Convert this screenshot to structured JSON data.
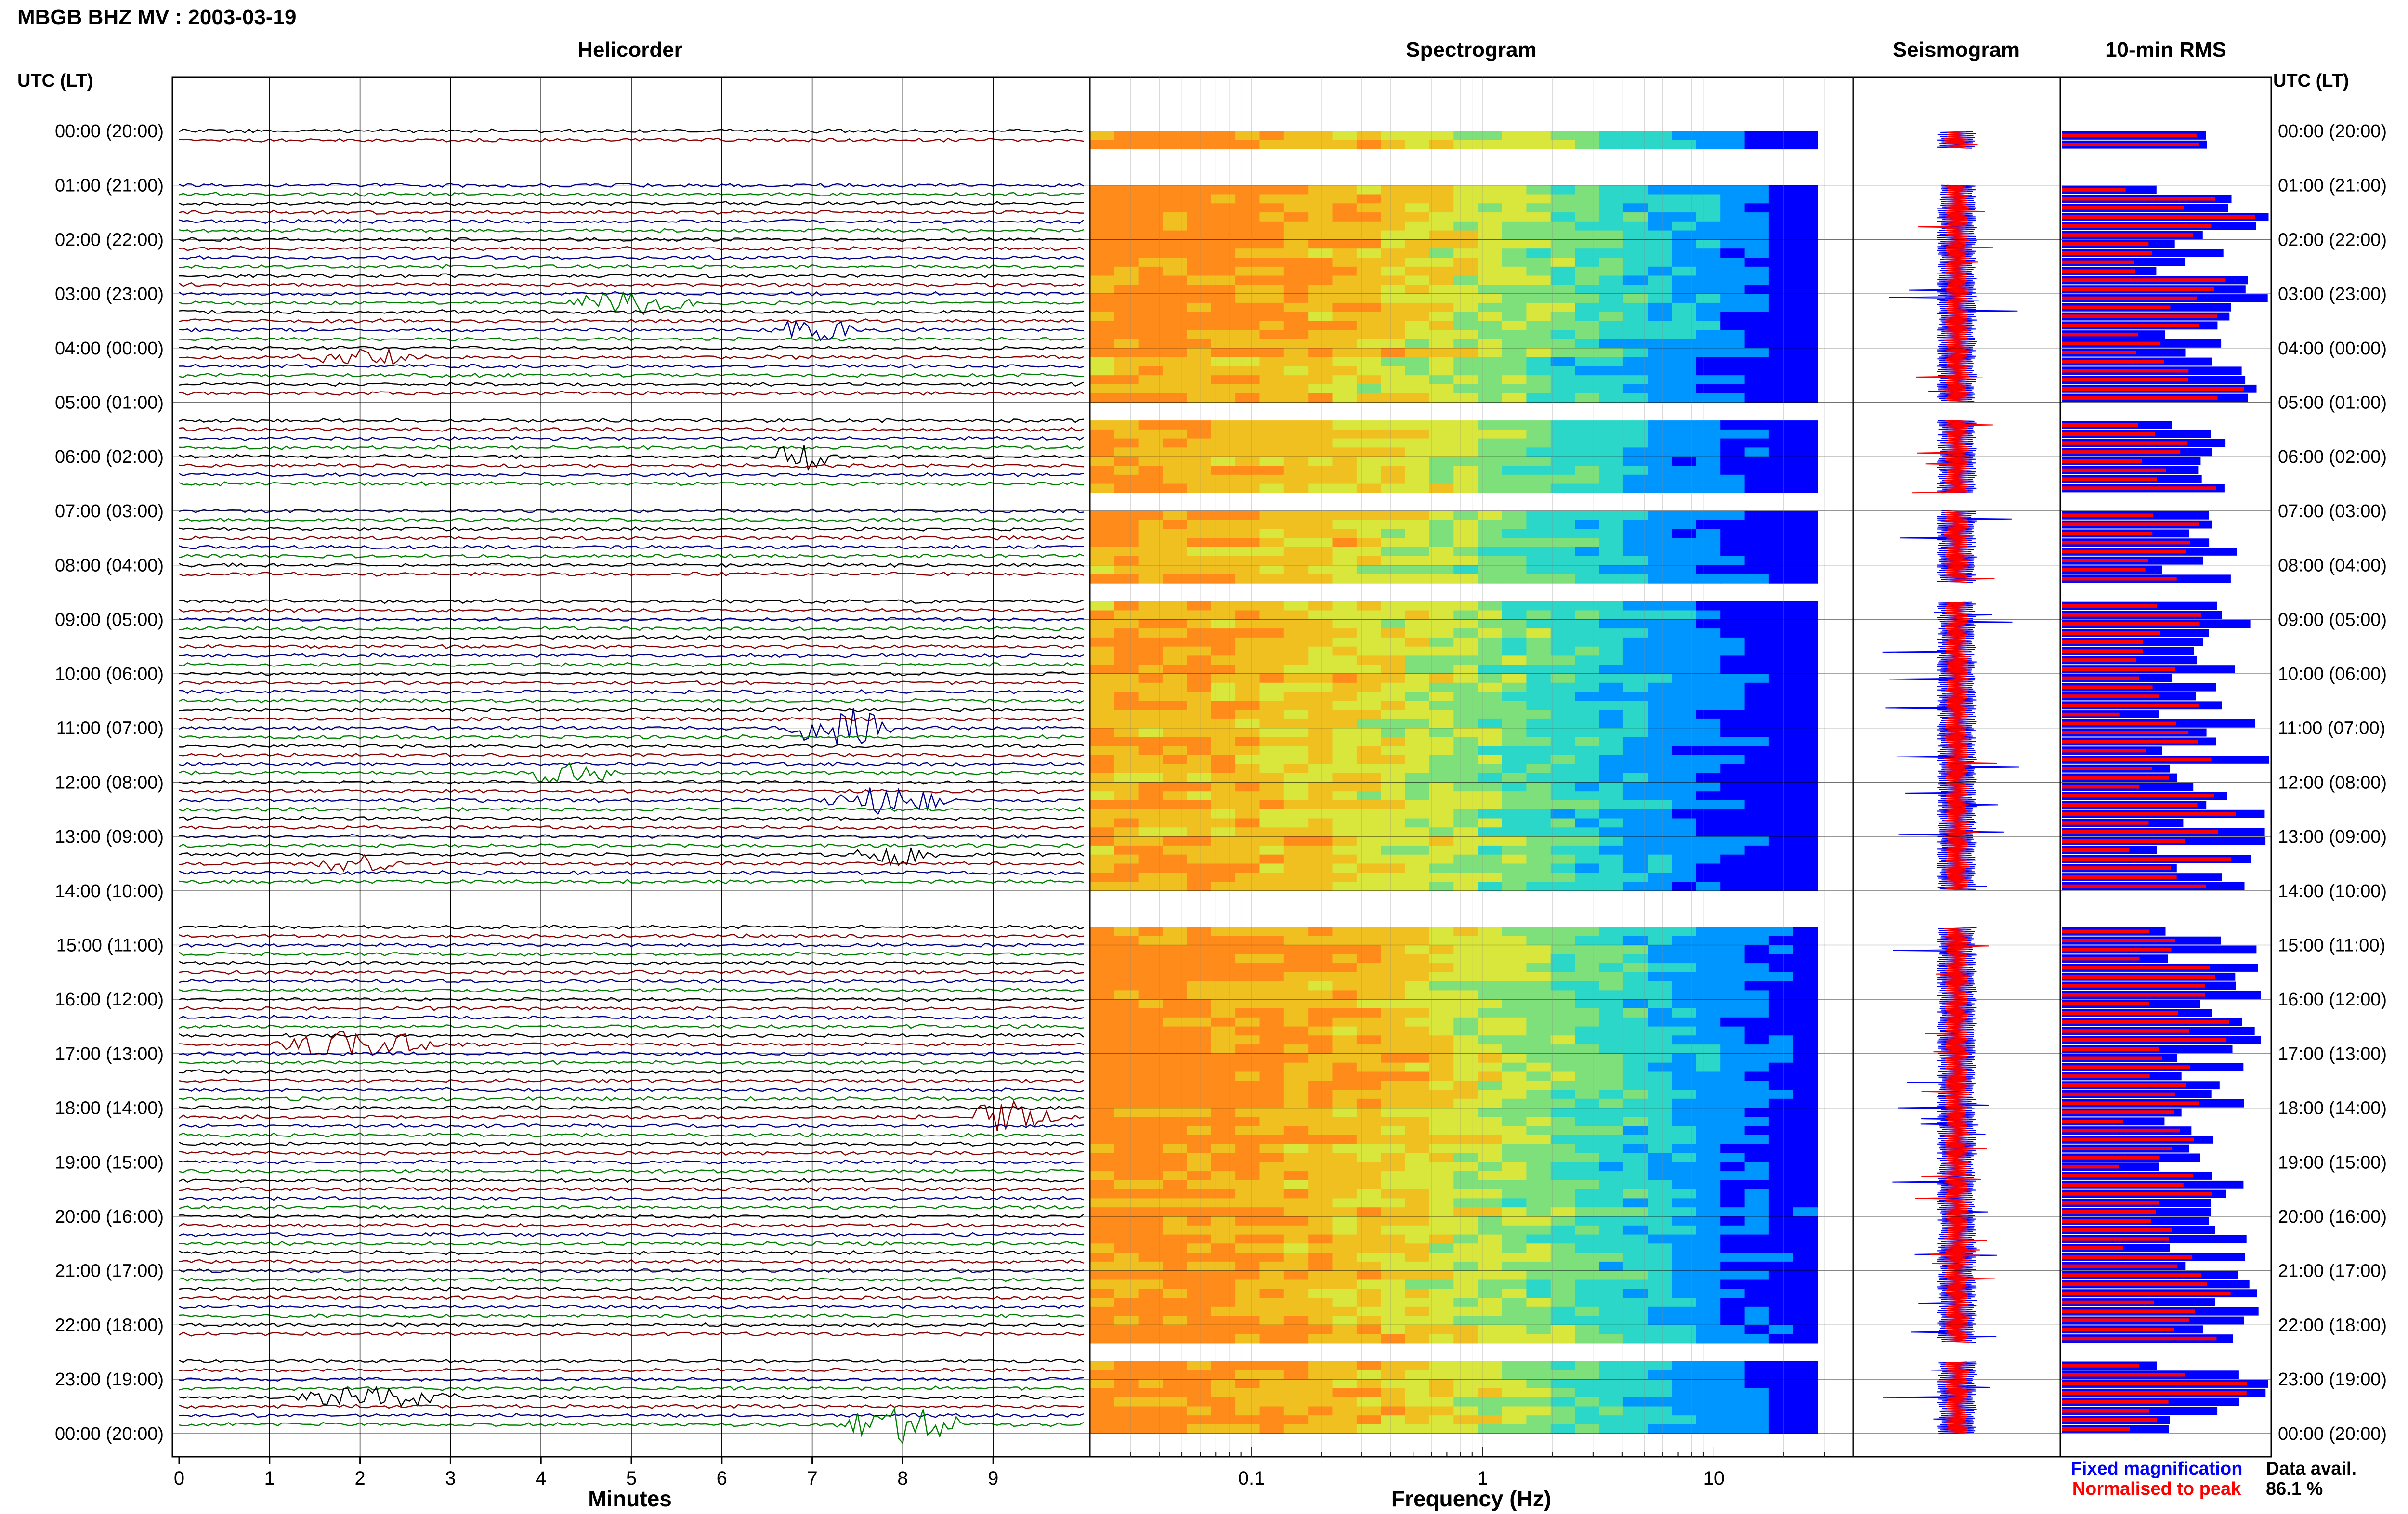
{
  "title": "MBGB BHZ MV : 2003-03-19",
  "axis_label_left": "UTC (LT)",
  "axis_label_right": "UTC (LT)",
  "hour_labels": [
    "00:00 (20:00)",
    "01:00 (21:00)",
    "02:00 (22:00)",
    "03:00 (23:00)",
    "04:00 (00:00)",
    "05:00 (01:00)",
    "06:00 (02:00)",
    "07:00 (03:00)",
    "08:00 (04:00)",
    "09:00 (05:00)",
    "10:00 (06:00)",
    "11:00 (07:00)",
    "12:00 (08:00)",
    "13:00 (09:00)",
    "14:00 (10:00)",
    "15:00 (11:00)",
    "16:00 (12:00)",
    "17:00 (13:00)",
    "18:00 (14:00)",
    "19:00 (15:00)",
    "20:00 (16:00)",
    "21:00 (17:00)",
    "22:00 (18:00)",
    "23:00 (19:00)",
    "00:00 (20:00)"
  ],
  "legend": {
    "fixed": "Fixed magnification",
    "normalised": "Normalised to peak",
    "fixed_color": "#0000ff",
    "normalised_color": "#ff0000"
  },
  "data_avail": {
    "label": "Data avail.",
    "value": "86.1 %"
  },
  "chart_data": [
    {
      "type": "line",
      "title": "Helicorder",
      "xlabel": "Minutes",
      "xlim": [
        0,
        10
      ],
      "x_ticks": [
        "0",
        "1",
        "2",
        "3",
        "4",
        "5",
        "6",
        "7",
        "8",
        "9"
      ],
      "trace_colors": [
        "#000000",
        "#8b0000",
        "#00008b",
        "#008000"
      ],
      "traces_per_hour": 6,
      "gaps_hours": [
        [
          0.33,
          1.0
        ],
        [
          5.0,
          5.33
        ],
        [
          6.67,
          7.0
        ],
        [
          8.33,
          8.67
        ],
        [
          14.0,
          14.67
        ],
        [
          22.33,
          22.67
        ]
      ],
      "events": [
        {
          "hour": 1.2,
          "minute": 2.6,
          "width": 1.5,
          "amp": 3.0,
          "color": "#8b0000"
        },
        {
          "hour": 1.35,
          "minute": 7.3,
          "width": 1.5,
          "amp": 2.0,
          "color": "#00008b"
        },
        {
          "hour": 2.3,
          "minute": 6.3,
          "width": 2.0,
          "amp": 2.2,
          "color": "#008000"
        },
        {
          "hour": 3.15,
          "minute": 5.0,
          "width": 1.5,
          "amp": 1.5,
          "color": "#008000"
        },
        {
          "hour": 3.6,
          "minute": 7.0,
          "width": 1.0,
          "amp": 1.5,
          "color": "#00008b"
        },
        {
          "hour": 4.1,
          "minute": 2.0,
          "width": 1.5,
          "amp": 1.2,
          "color": "#8b0000"
        },
        {
          "hour": 6.0,
          "minute": 8.8,
          "width": 1.2,
          "amp": 2.0,
          "color": "#8b0000"
        },
        {
          "hour": 6.0,
          "minute": 6.9,
          "width": 0.8,
          "amp": 1.8,
          "color": "#000000"
        },
        {
          "hour": 9.5,
          "minute": 4.5,
          "width": 1.0,
          "amp": 1.3,
          "color": "#000000"
        },
        {
          "hour": 11.0,
          "minute": 7.3,
          "width": 1.2,
          "amp": 3.0,
          "color": "#00008b"
        },
        {
          "hour": 11.9,
          "minute": 4.3,
          "width": 1.2,
          "amp": 1.5,
          "color": "#008000"
        },
        {
          "hour": 12.4,
          "minute": 7.8,
          "width": 1.5,
          "amp": 1.8,
          "color": "#00008b"
        },
        {
          "hour": 13.3,
          "minute": 7.9,
          "width": 1.0,
          "amp": 1.6,
          "color": "#000000"
        },
        {
          "hour": 13.5,
          "minute": 2.0,
          "width": 1.0,
          "amp": 1.2,
          "color": "#8b0000"
        },
        {
          "hour": 15.8,
          "minute": 7.2,
          "width": 2.0,
          "amp": 2.8,
          "color": "#8b0000"
        },
        {
          "hour": 16.9,
          "minute": 2.0,
          "width": 2.0,
          "amp": 1.8,
          "color": "#8b0000"
        },
        {
          "hour": 18.1,
          "minute": 9.2,
          "width": 1.2,
          "amp": 2.4,
          "color": "#8b0000"
        },
        {
          "hour": 19.9,
          "minute": 3.4,
          "width": 1.2,
          "amp": 2.0,
          "color": "#8b0000"
        },
        {
          "hour": 19.9,
          "minute": 7.6,
          "width": 1.6,
          "amp": 2.0,
          "color": "#8b0000"
        },
        {
          "hour": 21.3,
          "minute": 7.3,
          "width": 1.2,
          "amp": 2.5,
          "color": "#8b0000"
        },
        {
          "hour": 22.4,
          "minute": 2.6,
          "width": 1.0,
          "amp": 2.6,
          "color": "#008000"
        },
        {
          "hour": 23.3,
          "minute": 2.2,
          "width": 2.0,
          "amp": 1.5,
          "color": "#000000"
        },
        {
          "hour": 23.85,
          "minute": 8.0,
          "width": 1.5,
          "amp": 2.5,
          "color": "#008000"
        }
      ]
    },
    {
      "type": "heatmap",
      "title": "Spectrogram",
      "xlabel": "Frequency (Hz)",
      "x_scale": "log",
      "xlim": [
        0.02,
        40
      ],
      "x_ticks": [
        "0.1",
        "1",
        "10"
      ],
      "ylim_hours": [
        0,
        24
      ]
    },
    {
      "type": "line",
      "title": "Seismogram"
    },
    {
      "type": "bar",
      "title": "10-min RMS",
      "series": [
        {
          "name": "Fixed magnification",
          "color": "#0000ff"
        },
        {
          "name": "Normalised to peak",
          "color": "#ff0000"
        }
      ]
    }
  ]
}
